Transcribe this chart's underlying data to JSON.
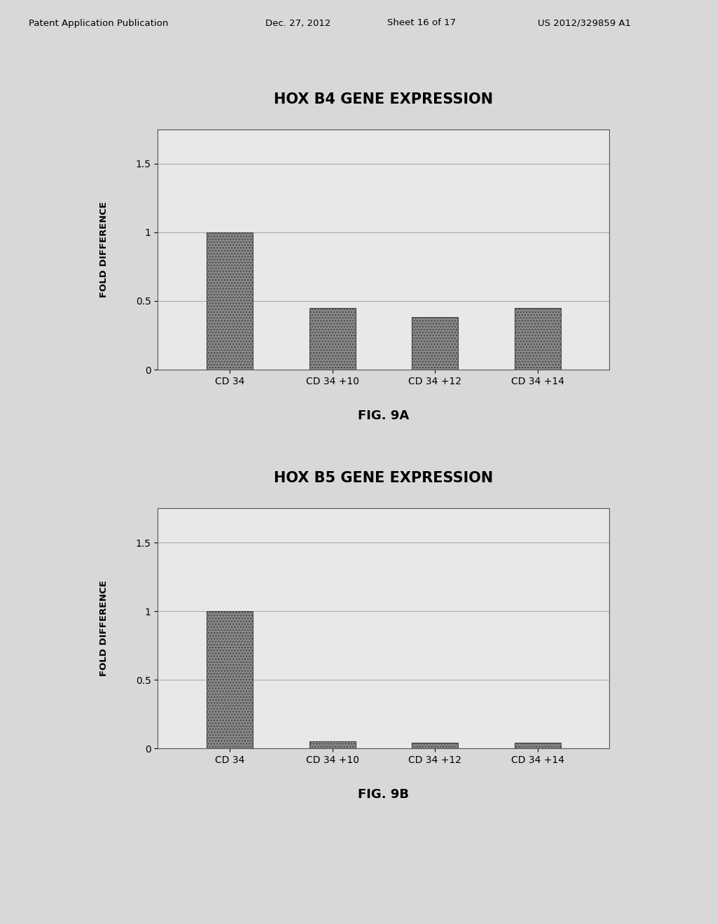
{
  "chart1": {
    "title": "HOX B4 GENE EXPRESSION",
    "categories": [
      "CD 34",
      "CD 34 +10",
      "CD 34 +12",
      "CD 34 +14"
    ],
    "values": [
      1.0,
      0.45,
      0.38,
      0.45
    ],
    "ylabel": "FOLD DIFFERENCE",
    "ylim": [
      0,
      1.75
    ],
    "yticks": [
      0,
      0.5,
      1,
      1.5
    ],
    "fig_label": "FIG. 9A"
  },
  "chart2": {
    "title": "HOX B5 GENE EXPRESSION",
    "categories": [
      "CD 34",
      "CD 34 +10",
      "CD 34 +12",
      "CD 34 +14"
    ],
    "values": [
      1.0,
      0.05,
      0.04,
      0.04
    ],
    "ylabel": "FOLD DIFFERENCE",
    "ylim": [
      0,
      1.75
    ],
    "yticks": [
      0,
      0.5,
      1,
      1.5
    ],
    "fig_label": "FIG. 9B"
  },
  "bar_color": "#888888",
  "bar_edgecolor": "#444444",
  "background_color": "#d8d8d8",
  "chart_bg": "#e8e8e8",
  "header_text": "Patent Application Publication",
  "header_date": "Dec. 27, 2012",
  "header_sheet": "Sheet 16 of 17",
  "header_id": "US 2012/329859 A1"
}
